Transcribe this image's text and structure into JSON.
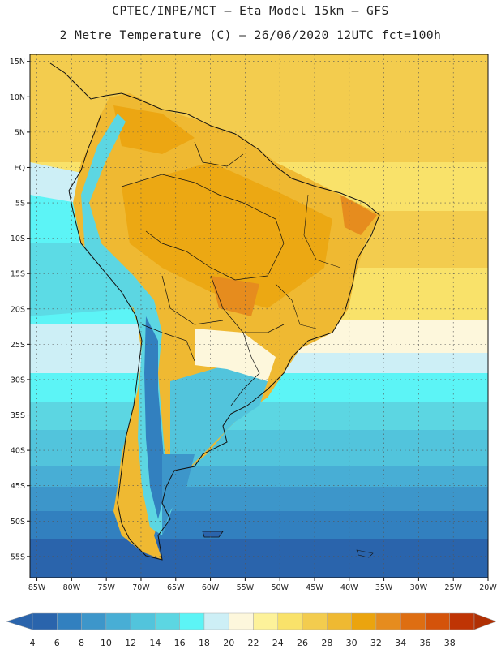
{
  "header": {
    "line1": "CPTEC/INPE/MCT –  Eta Model 15km – GFS",
    "line2": "2 Metre Temperature (C) – 26/06/2020 12UTC fct=100h"
  },
  "map": {
    "lon_min": -86,
    "lon_max": -20,
    "lat_min": -58,
    "lat_max": 16,
    "lat_labels": [
      "15N",
      "10N",
      "5N",
      "EQ",
      "5S",
      "10S",
      "15S",
      "20S",
      "25S",
      "30S",
      "35S",
      "40S",
      "45S",
      "50S",
      "55S"
    ],
    "lon_labels": [
      "85W",
      "80W",
      "75W",
      "70W",
      "65W",
      "60W",
      "55W",
      "50W",
      "45W",
      "40W",
      "35W",
      "30W",
      "25W",
      "20W"
    ],
    "grid": "dotted"
  },
  "colorbar": {
    "labels": [
      "4",
      "6",
      "8",
      "10",
      "12",
      "14",
      "16",
      "18",
      "20",
      "22",
      "24",
      "26",
      "28",
      "30",
      "32",
      "34",
      "36",
      "38"
    ],
    "colors": [
      "#2a64ac",
      "#3280bf",
      "#3d96ca",
      "#48aed5",
      "#52c4dc",
      "#5cd6e2",
      "#5cf4f6",
      "#cdeff6",
      "#fdf7dc",
      "#fdf29a",
      "#f9e26a",
      "#f3cc4e",
      "#efb932",
      "#eba40e",
      "#e68c1e",
      "#de6e12",
      "#d4530a",
      "#bf3404"
    ],
    "under_color": "#2a64ac",
    "over_color": "#b03004"
  }
}
